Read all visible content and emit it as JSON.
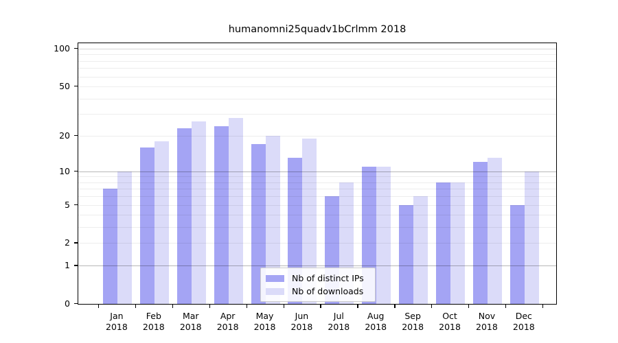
{
  "title": "humanomni25quadv1bCrlmm 2018",
  "legend": {
    "items": [
      {
        "label": "Nb of distinct IPs",
        "color": "#a4a4f4"
      },
      {
        "label": "Nb of downloads",
        "color": "#dbdbf9"
      }
    ],
    "position": "bottom-center"
  },
  "chart_data": {
    "type": "bar",
    "title": "humanomni25quadv1bCrlmm 2018",
    "categories": [
      "Jan",
      "Feb",
      "Mar",
      "Apr",
      "May",
      "Jun",
      "Jul",
      "Aug",
      "Sep",
      "Oct",
      "Nov",
      "Dec"
    ],
    "category_year": "2018",
    "series": [
      {
        "name": "Nb of distinct IPs",
        "color": "#a4a4f4",
        "values": [
          7,
          16,
          23,
          24,
          17,
          13,
          6,
          11,
          5,
          8,
          12,
          5
        ]
      },
      {
        "name": "Nb of downloads",
        "color": "#dbdbf9",
        "values": [
          10,
          18,
          26,
          28,
          20,
          19,
          8,
          11,
          6,
          8,
          13,
          10
        ]
      }
    ],
    "xlabel": "",
    "ylabel": "",
    "ylim": [
      0,
      100
    ],
    "y_scale": "log(1+x)",
    "y_ticks": [
      0,
      1,
      2,
      5,
      10,
      20,
      50,
      100
    ],
    "y_minor_gridlines": [
      2,
      3,
      4,
      5,
      6,
      7,
      8,
      9,
      20,
      30,
      40,
      50,
      60,
      70,
      80,
      90
    ],
    "y_major_gridlines": [
      1,
      10
    ],
    "y_mid_gridlines": [
      100
    ],
    "grid": true,
    "legend_position": "bottom-center"
  }
}
